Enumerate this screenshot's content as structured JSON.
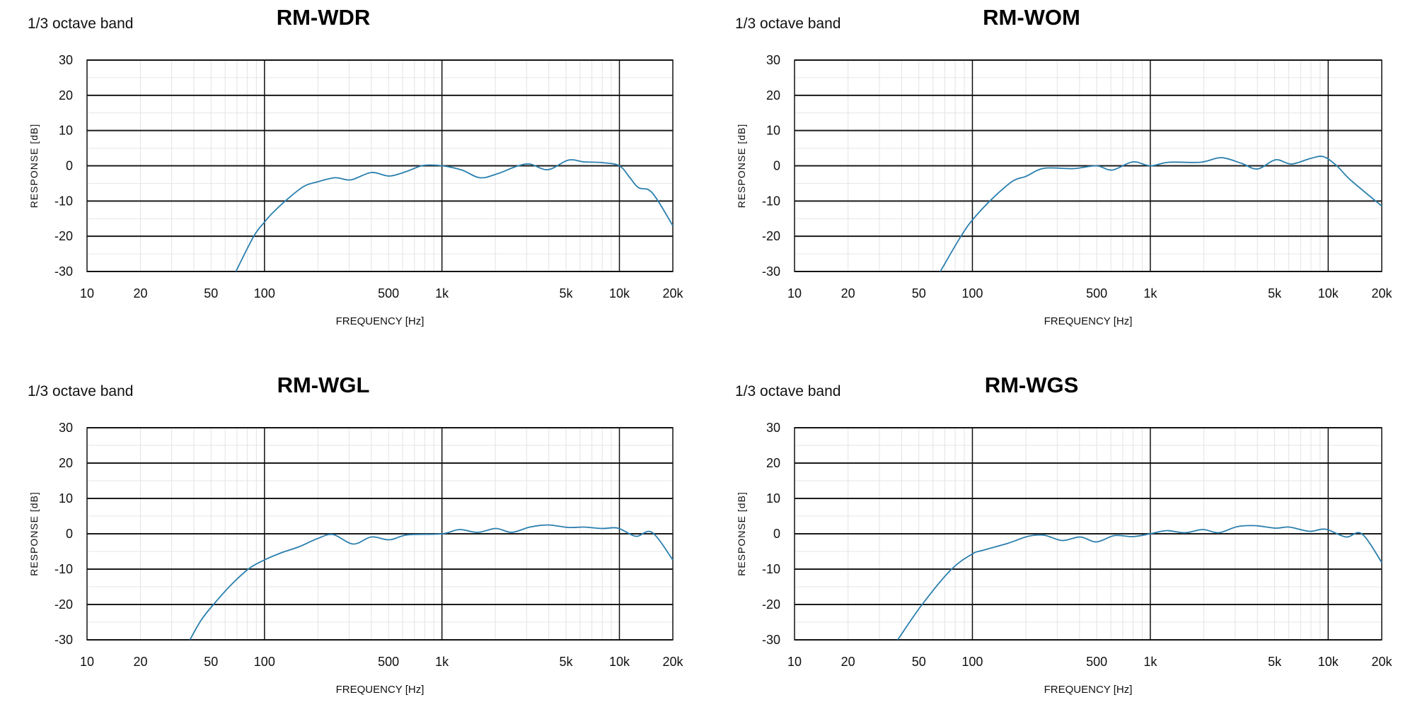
{
  "chart_data": [
    {
      "type": "line",
      "title": "RM-WDR",
      "subtitle": "1/3 octave band",
      "xlabel": "FREQUENCY [Hz]",
      "ylabel": "RESPONSE [dB]",
      "xscale": "log",
      "xlim": [
        10,
        20000
      ],
      "ylim": [
        -30,
        30
      ],
      "grid": true,
      "x_ticks": [
        10,
        20,
        50,
        100,
        500,
        1000,
        5000,
        10000,
        20000
      ],
      "x_tick_labels": [
        "10",
        "20",
        "50",
        "100",
        "500",
        "1k",
        "5k",
        "10k",
        "20k"
      ],
      "y_ticks": [
        30,
        20,
        10,
        0,
        -10,
        -20,
        -30
      ],
      "y_tick_labels": [
        "30",
        "20",
        "10",
        "0",
        "-10",
        "-20",
        "-30"
      ],
      "line_color": "#2a7fae",
      "x": [
        69,
        87,
        100,
        110,
        131,
        166,
        198,
        250,
        307,
        400,
        506,
        640,
        785,
        1000,
        1295,
        1636,
        2070,
        2617,
        3125,
        3955,
        5150,
        6330,
        8000,
        10000,
        11380,
        12800,
        15270,
        20000
      ],
      "y": [
        -30,
        -20,
        -16,
        -13.6,
        -10,
        -5.9,
        -4.6,
        -3.4,
        -4.0,
        -1.9,
        -2.9,
        -1.5,
        0.1,
        0,
        -1.2,
        -3.4,
        -2.2,
        -0.2,
        0.5,
        -1.1,
        1.6,
        1.1,
        0.9,
        0,
        -3.2,
        -6.2,
        -7.6,
        -17
      ]
    },
    {
      "type": "line",
      "title": "RM-WOM",
      "subtitle": "1/3 octave band",
      "xlabel": "FREQUENCY [Hz]",
      "ylabel": "RESPONSE [dB]",
      "xscale": "log",
      "xlim": [
        10,
        20000
      ],
      "ylim": [
        -30,
        30
      ],
      "grid": true,
      "x_ticks": [
        10,
        20,
        50,
        100,
        500,
        1000,
        5000,
        10000,
        20000
      ],
      "x_tick_labels": [
        "10",
        "20",
        "50",
        "100",
        "500",
        "1k",
        "5k",
        "10k",
        "20k"
      ],
      "y_ticks": [
        30,
        20,
        10,
        0,
        -10,
        -20,
        -30
      ],
      "y_tick_labels": [
        "30",
        "20",
        "10",
        "0",
        "-10",
        "-20",
        "-30"
      ],
      "line_color": "#2a7fae",
      "x": [
        66,
        85,
        100,
        129,
        168,
        200,
        253,
        371,
        497,
        611,
        796,
        1000,
        1273,
        1920,
        2500,
        3258,
        4000,
        5060,
        6210,
        7860,
        9380,
        11170,
        13330,
        20000
      ],
      "y": [
        -30,
        -20.5,
        -15.4,
        -9.4,
        -4.4,
        -3,
        -0.7,
        -0.8,
        0,
        -1.2,
        1.1,
        0,
        1.0,
        1.0,
        2.3,
        0.7,
        -0.9,
        1.7,
        0.5,
        2.0,
        2.6,
        0,
        -4,
        -11.4
      ]
    },
    {
      "type": "line",
      "title": "RM-WGL",
      "subtitle": "1/3 octave band",
      "xlabel": "FREQUENCY [Hz]",
      "ylabel": "RESPONSE [dB]",
      "xscale": "log",
      "xlim": [
        10,
        20000
      ],
      "ylim": [
        -30,
        30
      ],
      "grid": true,
      "x_ticks": [
        10,
        20,
        50,
        100,
        500,
        1000,
        5000,
        10000,
        20000
      ],
      "x_tick_labels": [
        "10",
        "20",
        "50",
        "100",
        "500",
        "1k",
        "5k",
        "10k",
        "20k"
      ],
      "y_ticks": [
        30,
        20,
        10,
        0,
        -10,
        -20,
        -30
      ],
      "y_tick_labels": [
        "30",
        "20",
        "10",
        "0",
        "-10",
        "-20",
        "-30"
      ],
      "line_color": "#2a7fae",
      "x": [
        38,
        44,
        52,
        65,
        82,
        100,
        124,
        156,
        198,
        243,
        316,
        400,
        506,
        640,
        1000,
        1257,
        1590,
        2013,
        2473,
        3125,
        3955,
        5150,
        6330,
        8000,
        9800,
        12370,
        15270,
        20000
      ],
      "y": [
        -30,
        -24.4,
        -19.8,
        -14.4,
        -9.8,
        -7.4,
        -5.4,
        -3.7,
        -1.4,
        -0.2,
        -2.9,
        -0.9,
        -1.7,
        -0.3,
        0,
        1.2,
        0.4,
        1.5,
        0.4,
        1.9,
        2.5,
        1.8,
        1.9,
        1.5,
        1.6,
        -0.7,
        0.4,
        -7.4
      ]
    },
    {
      "type": "line",
      "title": "RM-WGS",
      "subtitle": "1/3 octave band",
      "xlabel": "FREQUENCY [Hz]",
      "ylabel": "RESPONSE [dB]",
      "xscale": "log",
      "xlim": [
        10,
        20000
      ],
      "ylim": [
        -30,
        30
      ],
      "grid": true,
      "x_ticks": [
        10,
        20,
        50,
        100,
        500,
        1000,
        5000,
        10000,
        20000
      ],
      "x_tick_labels": [
        "10",
        "20",
        "50",
        "100",
        "500",
        "1k",
        "5k",
        "10k",
        "20k"
      ],
      "y_ticks": [
        30,
        20,
        10,
        0,
        -10,
        -20,
        -30
      ],
      "y_tick_labels": [
        "30",
        "20",
        "10",
        "0",
        "-10",
        "-20",
        "-30"
      ],
      "line_color": "#2a7fae",
      "x": [
        38,
        52,
        76,
        100,
        114,
        158,
        206,
        253,
        320,
        404,
        497,
        628,
        796,
        1000,
        1235,
        1563,
        1977,
        2430,
        3070,
        3880,
        5060,
        6040,
        7860,
        9660,
        12560,
        15450,
        20000
      ],
      "y": [
        -30,
        -20.1,
        -10.1,
        -5.7,
        -4.7,
        -2.7,
        -0.7,
        -0.4,
        -1.9,
        -0.9,
        -2.3,
        -0.5,
        -0.8,
        0,
        0.9,
        0.3,
        1.2,
        0.3,
        2.0,
        2.3,
        1.6,
        1.9,
        0.7,
        1.3,
        -0.9,
        0,
        -8.1
      ]
    }
  ]
}
